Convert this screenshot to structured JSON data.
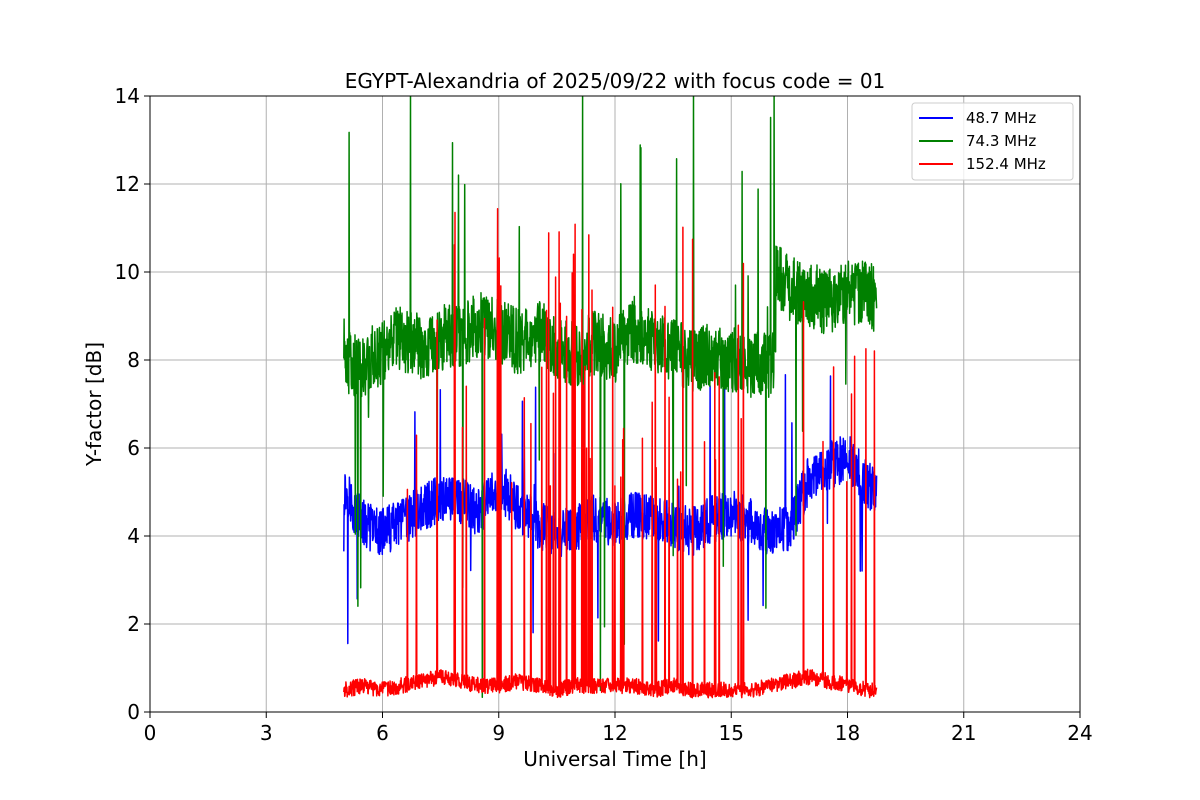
{
  "chart_data": {
    "type": "line",
    "title": "EGYPT-Alexandria of 2025/09/22 with focus code = 01",
    "xlabel": "Universal Time [h]",
    "ylabel": "Y-factor [dB]",
    "xlim": [
      0,
      24
    ],
    "ylim": [
      0,
      14
    ],
    "xticks": [
      0,
      3,
      6,
      9,
      12,
      15,
      18,
      21,
      24
    ],
    "yticks": [
      0,
      2,
      4,
      6,
      8,
      10,
      12,
      14
    ],
    "grid": true,
    "legend_position": "top-right",
    "series": [
      {
        "name": "  48.7 MHz",
        "color": "#0000ff",
        "x": [
          5.0,
          5.1,
          5.3,
          5.6,
          6.0,
          6.5,
          7.0,
          7.5,
          8.0,
          8.5,
          9.0,
          9.5,
          10.0,
          10.5,
          11.0,
          11.5,
          12.0,
          12.5,
          13.0,
          13.5,
          14.0,
          14.5,
          15.0,
          15.5,
          16.0,
          16.5,
          17.0,
          17.5,
          18.0,
          18.5,
          18.75
        ],
        "y": [
          3.9,
          5.0,
          4.5,
          4.2,
          4.1,
          4.3,
          4.6,
          4.9,
          4.8,
          4.5,
          5.2,
          4.6,
          4.3,
          4.0,
          4.2,
          4.4,
          4.3,
          4.5,
          4.4,
          4.2,
          4.1,
          4.4,
          4.5,
          4.3,
          4.1,
          4.2,
          5.3,
          5.6,
          5.8,
          5.2,
          4.9
        ]
      },
      {
        "name": "  74.3 MHz",
        "color": "#008000",
        "x": [
          5.0,
          5.2,
          5.5,
          6.0,
          6.5,
          7.0,
          7.5,
          8.0,
          8.5,
          9.0,
          9.5,
          10.0,
          10.5,
          11.0,
          11.5,
          12.0,
          12.5,
          13.0,
          13.5,
          14.0,
          14.5,
          15.0,
          15.5,
          16.0,
          16.15,
          16.2,
          16.5,
          17.0,
          17.5,
          18.0,
          18.5,
          18.75
        ],
        "y": [
          8.3,
          7.8,
          7.9,
          8.2,
          8.5,
          8.3,
          8.5,
          8.6,
          8.8,
          8.7,
          8.4,
          8.7,
          8.3,
          8.1,
          8.4,
          8.2,
          8.7,
          8.4,
          8.2,
          8.0,
          8.1,
          8.0,
          7.9,
          7.9,
          8.1,
          10.0,
          9.6,
          9.5,
          9.3,
          9.5,
          9.6,
          9.3
        ]
      },
      {
        "name": "152.4 MHz",
        "color": "#ff0000",
        "x": [
          5.0,
          5.5,
          6.0,
          6.5,
          7.0,
          7.5,
          8.0,
          8.5,
          9.0,
          9.5,
          10.0,
          10.5,
          11.0,
          11.5,
          12.0,
          12.5,
          13.0,
          13.5,
          14.0,
          14.5,
          15.0,
          15.5,
          16.0,
          16.5,
          17.0,
          17.5,
          18.0,
          18.5,
          18.75
        ],
        "y": [
          0.5,
          0.6,
          0.5,
          0.6,
          0.7,
          0.8,
          0.7,
          0.6,
          0.6,
          0.7,
          0.6,
          0.5,
          0.6,
          0.6,
          0.6,
          0.6,
          0.5,
          0.6,
          0.5,
          0.5,
          0.5,
          0.5,
          0.6,
          0.7,
          0.8,
          0.7,
          0.6,
          0.5,
          0.5
        ]
      }
    ]
  }
}
